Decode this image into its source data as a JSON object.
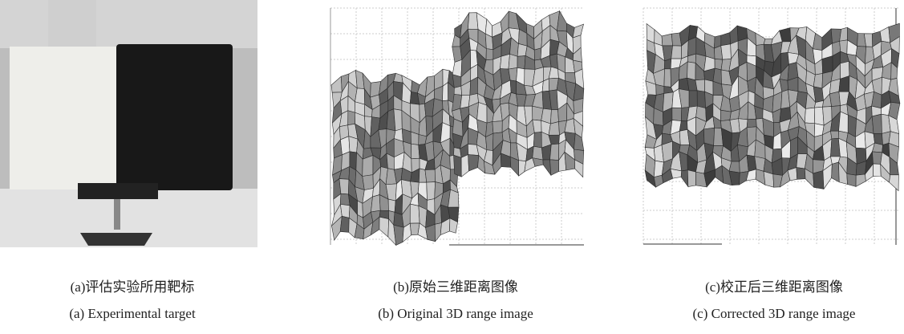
{
  "panels": [
    {
      "caption_zh": "(a)评估实验所用靶标",
      "caption_en": "(a) Experimental target"
    },
    {
      "caption_zh": "(b)原始三维距离图像",
      "caption_en": "(b) Original 3D range image"
    },
    {
      "caption_zh": "(c)校正后三维距离图像",
      "caption_en": "(c) Corrected 3D range image"
    }
  ]
}
